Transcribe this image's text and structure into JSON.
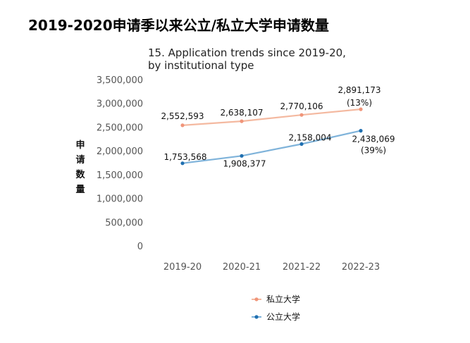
{
  "page": {
    "title": "2019-2020申请季以来公立/私立大学申请数量"
  },
  "chart_data": {
    "type": "line",
    "title_lines": [
      "15. Application trends since 2019-20,",
      "by institutional type"
    ],
    "ylabel": "申请数量",
    "xlabel": "",
    "categories": [
      "2019-20",
      "2020-21",
      "2021-22",
      "2022-23"
    ],
    "y_ticks": [
      "3,500,000",
      "3,000,000",
      "2,500,000",
      "2,000,000",
      "1,500,000",
      "1,000,000",
      "500,000",
      "0"
    ],
    "ylim": [
      0,
      3500000
    ],
    "grid": false,
    "legend_position": "bottom",
    "series": [
      {
        "name": "私立大学",
        "color": "#f4b9a0",
        "marker_color": "#f0957a",
        "values": [
          2552593,
          2638107,
          2770106,
          2891173
        ],
        "labels": [
          "2,552,593",
          "2,638,107",
          "2,770,106",
          "2,891,173"
        ],
        "change_note": "(13%)"
      },
      {
        "name": "公立大学",
        "color": "#7fb3da",
        "marker_color": "#1f6fb0",
        "values": [
          1753568,
          1908377,
          2158004,
          2438069
        ],
        "labels": [
          "1,753,568",
          "1,908,377",
          "2,158,004",
          "2,438,069"
        ],
        "change_note": "(39%)"
      }
    ]
  }
}
